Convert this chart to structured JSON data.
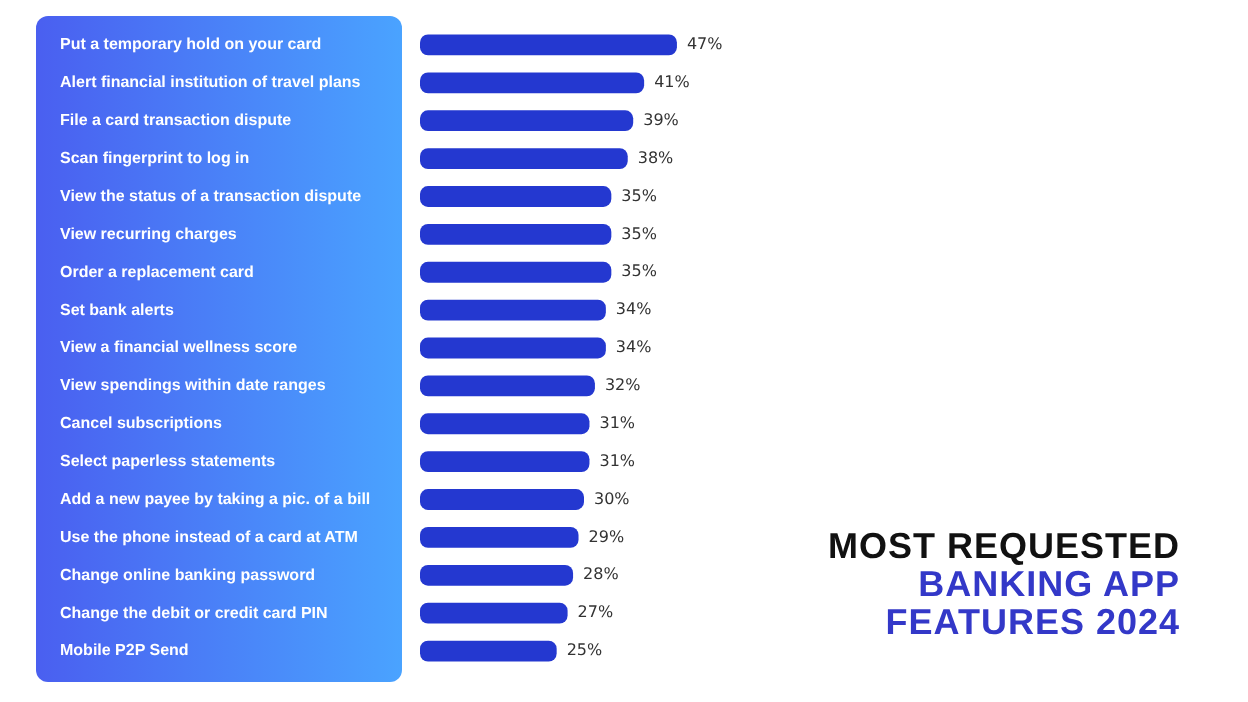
{
  "chart_data": {
    "type": "bar",
    "orientation": "horizontal",
    "title": "MOST REQUESTED",
    "subtitle": "BANKING APP FEATURES 2024",
    "categories": [
      "Put a temporary hold on your card",
      "Alert financial institution of travel plans",
      "File a card transaction dispute",
      "Scan fingerprint to log in",
      "View the status of a transaction dispute",
      "View recurring charges",
      "Order a replacement card",
      "Set bank alerts",
      "View a financial wellness score",
      "View spendings within date ranges",
      "Cancel subscriptions",
      "Select paperless statements",
      "Add a new payee by taking a pic. of a bill",
      "Use the phone instead of a card at ATM",
      "Change online banking password",
      "Change the debit or credit card PIN",
      "Mobile P2P Send"
    ],
    "values": [
      47,
      41,
      39,
      38,
      35,
      35,
      35,
      34,
      34,
      32,
      31,
      31,
      30,
      29,
      28,
      27,
      25
    ],
    "value_labels": [
      "47%",
      "41%",
      "39%",
      "38%",
      "35%",
      "35%",
      "35%",
      "34%",
      "34%",
      "32%",
      "31%",
      "31%",
      "30%",
      "29%",
      "28%",
      "27%",
      "25%"
    ],
    "color": "#2438d0",
    "grid": false,
    "legend": false
  }
}
